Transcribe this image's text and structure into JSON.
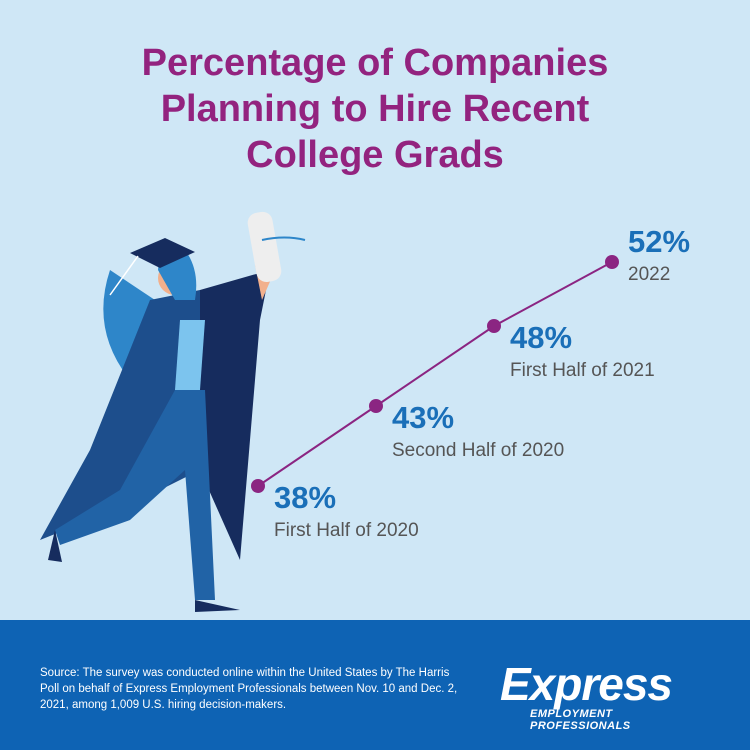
{
  "chart_data": {
    "type": "line",
    "title": "Percentage of Companies Planning to Hire Recent College Grads",
    "categories": [
      "First Half of 2020",
      "Second Half of 2020",
      "First Half of 2021",
      "2022"
    ],
    "values": [
      38,
      43,
      48,
      52
    ],
    "value_labels": [
      "38%",
      "43%",
      "48%",
      "52%"
    ],
    "color": "#8b2582"
  },
  "footer": {
    "source": "Source: The survey was conducted online within the United States by The Harris Poll on behalf of Express Employment Professionals between Nov. 10 and Dec. 2, 2021, among 1,009 U.S. hiring decision-makers.",
    "logo": "Express",
    "logo_tagline": "EMPLOYMENT PROFESSIONALS"
  }
}
